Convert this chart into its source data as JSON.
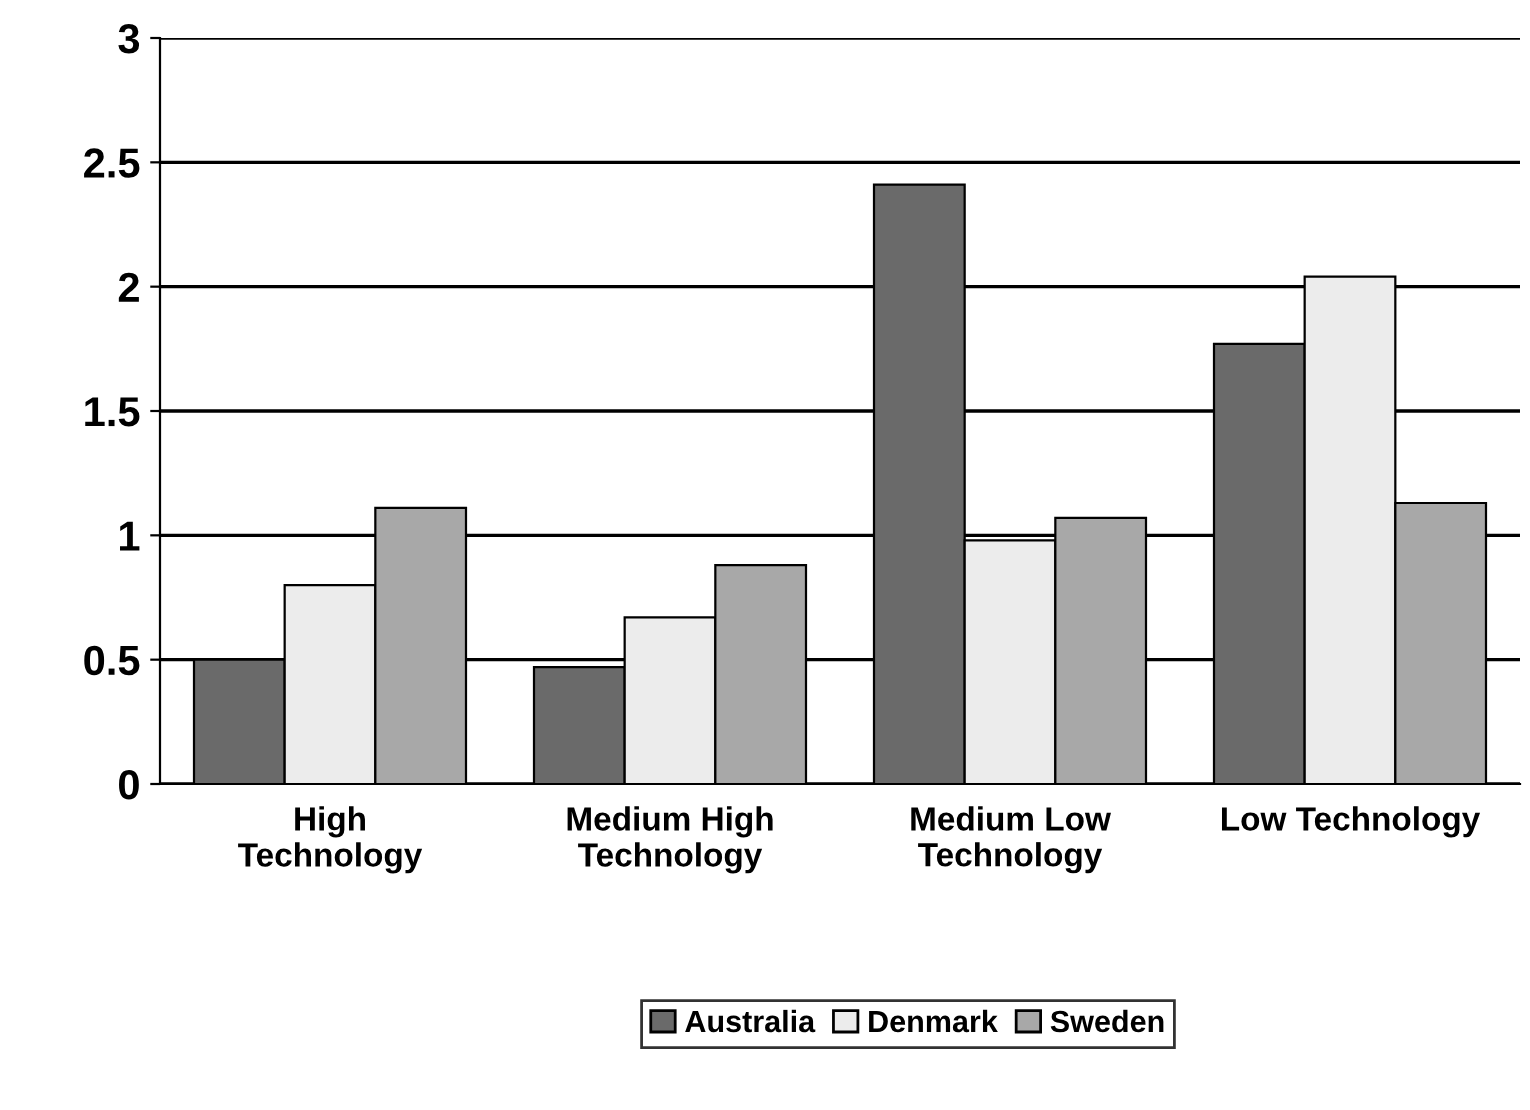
{
  "chart_data": {
    "type": "bar",
    "categories": [
      "High\nTechnology",
      "Medium High\nTechnology",
      "Medium Low\nTechnology",
      "Low Technology"
    ],
    "series": [
      {
        "name": "Australia",
        "color": "#6a6a6a",
        "values": [
          0.5,
          0.47,
          2.41,
          1.77
        ]
      },
      {
        "name": "Denmark",
        "color": "#ececec",
        "values": [
          0.8,
          0.67,
          0.98,
          2.04
        ]
      },
      {
        "name": "Sweden",
        "color": "#a8a8a8",
        "values": [
          1.11,
          0.88,
          1.07,
          1.13
        ]
      }
    ],
    "ylim": [
      0,
      3
    ],
    "yticks": [
      0,
      0.5,
      1,
      1.5,
      2,
      2.5,
      3
    ],
    "grid": "y",
    "legend": "bottom"
  }
}
